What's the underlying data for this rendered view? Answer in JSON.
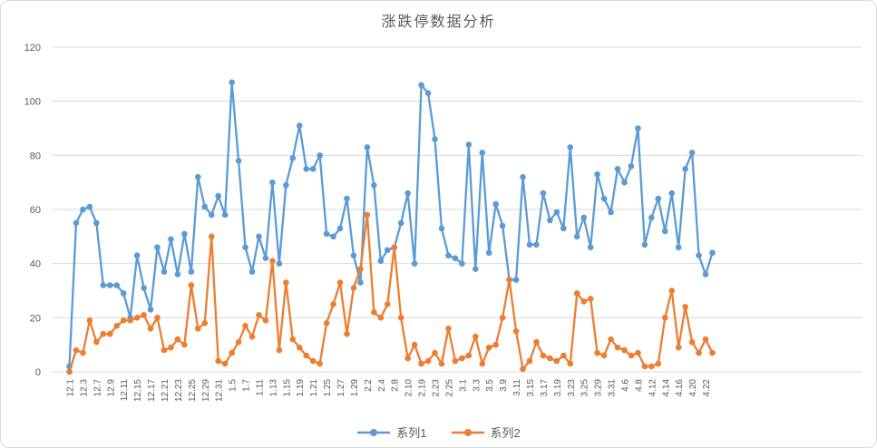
{
  "title": "涨跌停数据分析",
  "legend": [
    {
      "label": "系列1",
      "color": "#5B9BD5"
    },
    {
      "label": "系列2",
      "color": "#ED7D31"
    }
  ],
  "y_axis": {
    "ticks": [
      0,
      20,
      40,
      60,
      80,
      100,
      120
    ],
    "min": 0,
    "max": 120
  },
  "x_axis": {
    "visible_labels": [
      "12.1",
      "12.3",
      "12.7",
      "12.9",
      "12.11",
      "12.15",
      "12.17",
      "12.21",
      "12.23",
      "12.25",
      "12.29",
      "12.31",
      "1.5",
      "1.7",
      "1.11",
      "1.13",
      "1.15",
      "1.19",
      "1.21",
      "1.25",
      "1.27",
      "1.29",
      "2.2",
      "2.4",
      "2.8",
      "2.10",
      "2.19",
      "2.23",
      "2.25",
      "3.1",
      "3.3",
      "3.5",
      "3.9",
      "3.11",
      "3.15",
      "3.17",
      "3.19",
      "3.23",
      "3.25",
      "3.29",
      "3.31",
      "4.6",
      "4.8",
      "4.12",
      "4.14",
      "4.16",
      "4.20",
      "4.22"
    ],
    "label_every": 2
  },
  "colors": {
    "grid": "#d9d9d9",
    "axis_text": "#595959",
    "title_text": "#595959",
    "background": "#ffffff"
  },
  "chart_data": {
    "type": "line",
    "title": "涨跌停数据分析",
    "xlabel": "",
    "ylabel": "",
    "ylim": [
      0,
      120
    ],
    "grid": true,
    "legend_position": "bottom",
    "categories": [
      "12.1",
      "",
      "12.3",
      "",
      "12.7",
      "",
      "12.9",
      "",
      "12.11",
      "",
      "12.15",
      "",
      "12.17",
      "",
      "12.21",
      "",
      "12.23",
      "",
      "12.25",
      "",
      "12.29",
      "",
      "12.31",
      "",
      "1.5",
      "",
      "1.7",
      "",
      "1.11",
      "",
      "1.13",
      "",
      "1.15",
      "",
      "1.19",
      "",
      "1.21",
      "",
      "1.25",
      "",
      "1.27",
      "",
      "1.29",
      "",
      "2.2",
      "",
      "2.4",
      "",
      "2.8",
      "",
      "2.10",
      "",
      "2.19",
      "",
      "2.23",
      "",
      "2.25",
      "",
      "3.1",
      "",
      "3.3",
      "",
      "3.5",
      "",
      "3.9",
      "",
      "3.11",
      "",
      "3.15",
      "",
      "3.17",
      "",
      "3.19",
      "",
      "3.23",
      "",
      "3.25",
      "",
      "3.29",
      "",
      "3.31",
      "",
      "4.6",
      "",
      "4.8",
      "",
      "4.12",
      "",
      "4.14",
      "",
      "4.16",
      "",
      "4.20",
      "",
      "4.22",
      ""
    ],
    "series": [
      {
        "name": "系列1",
        "color": "#5B9BD5",
        "values": [
          2,
          55,
          60,
          61,
          55,
          32,
          32,
          32,
          29,
          20,
          43,
          31,
          23,
          46,
          37,
          49,
          36,
          51,
          37,
          72,
          61,
          58,
          65,
          58,
          107,
          78,
          46,
          37,
          50,
          42,
          70,
          40,
          69,
          79,
          91,
          75,
          75,
          80,
          51,
          50,
          53,
          64,
          43,
          33,
          83,
          69,
          41,
          45,
          46,
          55,
          66,
          40,
          106,
          103,
          86,
          53,
          43,
          42,
          40,
          84,
          38,
          81,
          44,
          62,
          54,
          34,
          34,
          72,
          47,
          47,
          66,
          56,
          59,
          53,
          83,
          50,
          57,
          46,
          73,
          64,
          59,
          75,
          70,
          76,
          90,
          47,
          57,
          64,
          52,
          66,
          46,
          75,
          81,
          43,
          36,
          44
        ]
      },
      {
        "name": "系列2",
        "color": "#ED7D31",
        "values": [
          0,
          8,
          7,
          19,
          11,
          14,
          14,
          17,
          19,
          19,
          20,
          21,
          16,
          20,
          8,
          9,
          12,
          10,
          32,
          16,
          18,
          50,
          4,
          3,
          7,
          11,
          17,
          13,
          21,
          19,
          41,
          8,
          33,
          12,
          9,
          6,
          4,
          3,
          18,
          25,
          33,
          14,
          31,
          38,
          58,
          22,
          20,
          25,
          46,
          20,
          5,
          10,
          3,
          4,
          7,
          3,
          16,
          4,
          5,
          6,
          13,
          3,
          9,
          10,
          20,
          34,
          15,
          1,
          4,
          11,
          6,
          5,
          4,
          6,
          3,
          29,
          26,
          27,
          7,
          6,
          12,
          9,
          8,
          6,
          7,
          2,
          2,
          3,
          20,
          30,
          9,
          24,
          11,
          7,
          12,
          7
        ]
      }
    ]
  }
}
